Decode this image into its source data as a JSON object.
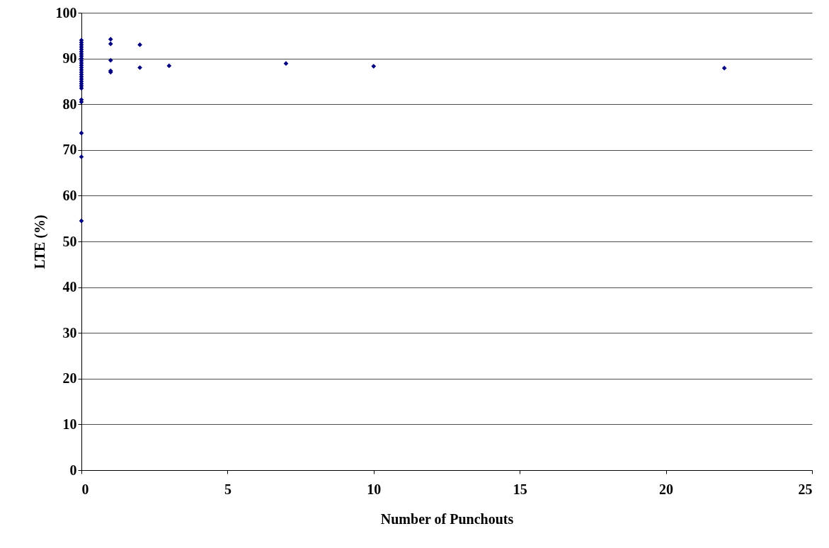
{
  "chart_data": {
    "type": "scatter",
    "xlabel": "Number of Punchouts",
    "ylabel": "LTE (%)",
    "x": [
      0,
      0,
      0,
      0,
      0,
      0,
      0,
      0,
      0,
      0,
      0,
      0,
      0,
      0,
      0,
      0,
      0,
      0,
      0,
      0,
      0,
      0,
      0,
      0,
      0,
      0,
      0,
      1,
      1,
      1,
      1,
      1,
      2,
      2,
      3,
      7,
      10,
      22
    ],
    "series": [
      {
        "color": "#000080",
        "values": [
          94.0,
          93.5,
          93.0,
          92.5,
          92.0,
          91.5,
          91.0,
          90.5,
          90.0,
          89.5,
          89.0,
          88.5,
          88.0,
          87.5,
          87.0,
          86.5,
          86.0,
          85.5,
          85.0,
          84.5,
          84.0,
          83.5,
          81.0,
          80.5,
          73.7,
          68.5,
          54.5,
          94.2,
          93.2,
          89.6,
          87.3,
          87.0,
          93.0,
          88.0,
          88.4,
          88.9,
          88.3,
          87.9
        ]
      }
    ],
    "xlim": [
      0,
      25
    ],
    "xticks": [
      0,
      5,
      10,
      15,
      20,
      25
    ],
    "ylim": [
      0,
      100
    ],
    "yticks": [
      0,
      10,
      20,
      30,
      40,
      50,
      60,
      70,
      80,
      90,
      100
    ],
    "grid": "y",
    "marker": "diamond"
  }
}
